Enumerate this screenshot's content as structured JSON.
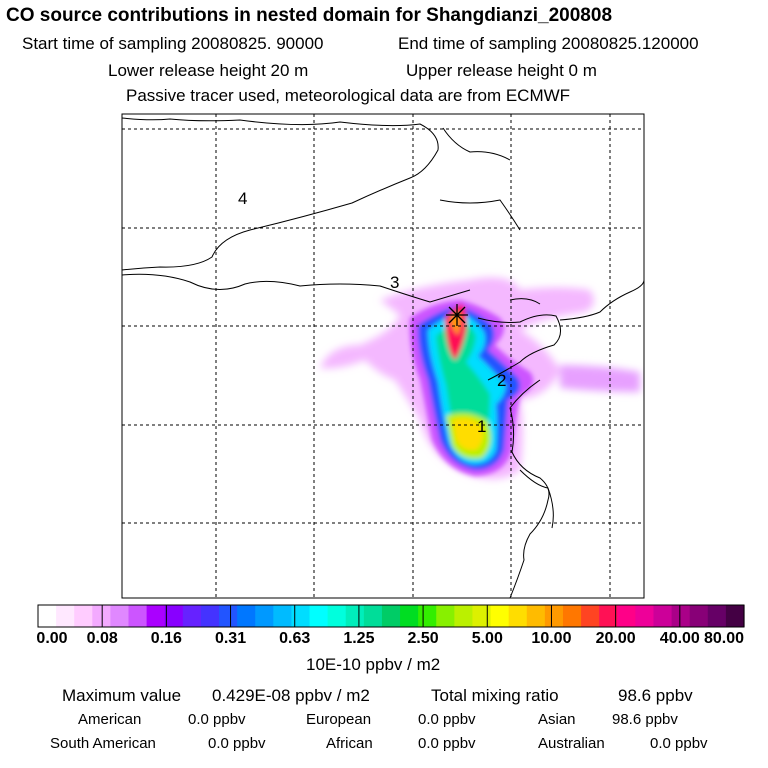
{
  "header": {
    "title": "CO  source contributions in nested domain for Shangdianzi_200808",
    "start_label": "Start time of sampling 20080825. 90000",
    "end_label": "End time of sampling 20080825.120000",
    "lower_label": "Lower release height   20 m",
    "upper_label": "Upper release height    0 m",
    "tracer_note": "Passive tracer used, meteorological data are from ECMWF"
  },
  "map": {
    "region_labels": [
      "1",
      "2",
      "3",
      "4"
    ],
    "receptor_marker": "star-icon"
  },
  "chart_data": {
    "type": "heatmap",
    "title": "CO  source contributions in nested domain for Shangdianzi_200808",
    "colorbar": {
      "ticks": [
        "0.00",
        "0.08",
        "0.16",
        "0.31",
        "0.63",
        "1.25",
        "2.50",
        "5.00",
        "10.00",
        "20.00",
        "40.00",
        "80.00"
      ],
      "unit": "10E-10 ppbv / m2",
      "colors": [
        "#ffffff",
        "#ffe8ff",
        "#ffccff",
        "#f3aaff",
        "#e088ff",
        "#cc55ff",
        "#aa00ff",
        "#8800ff",
        "#6622ff",
        "#4433ff",
        "#2255ff",
        "#0077ff",
        "#0099ff",
        "#00bbff",
        "#00ddff",
        "#00ffff",
        "#00ffdd",
        "#00eebb",
        "#00dd99",
        "#00cc66",
        "#00dd22",
        "#33ee00",
        "#88f000",
        "#bbf000",
        "#ddf000",
        "#ffff00",
        "#ffdd00",
        "#ffbb00",
        "#ff9900",
        "#ff7700",
        "#ff4422",
        "#ff1155",
        "#ff0088",
        "#ee0099",
        "#cc0099",
        "#aa0088",
        "#880077",
        "#660066",
        "#440044"
      ]
    }
  },
  "stats": {
    "max_label": "Maximum value",
    "max_value": "0.429E-08 ppbv / m2",
    "total_label": "Total mixing ratio",
    "total_value": "98.6 ppbv",
    "regions": [
      {
        "name": "American",
        "value": "0.0 ppbv"
      },
      {
        "name": "European",
        "value": "0.0 ppbv"
      },
      {
        "name": "Asian",
        "value": "98.6 ppbv"
      },
      {
        "name": "South American",
        "value": "0.0 ppbv"
      },
      {
        "name": "African",
        "value": "0.0 ppbv"
      },
      {
        "name": "Australian",
        "value": "0.0 ppbv"
      }
    ]
  }
}
